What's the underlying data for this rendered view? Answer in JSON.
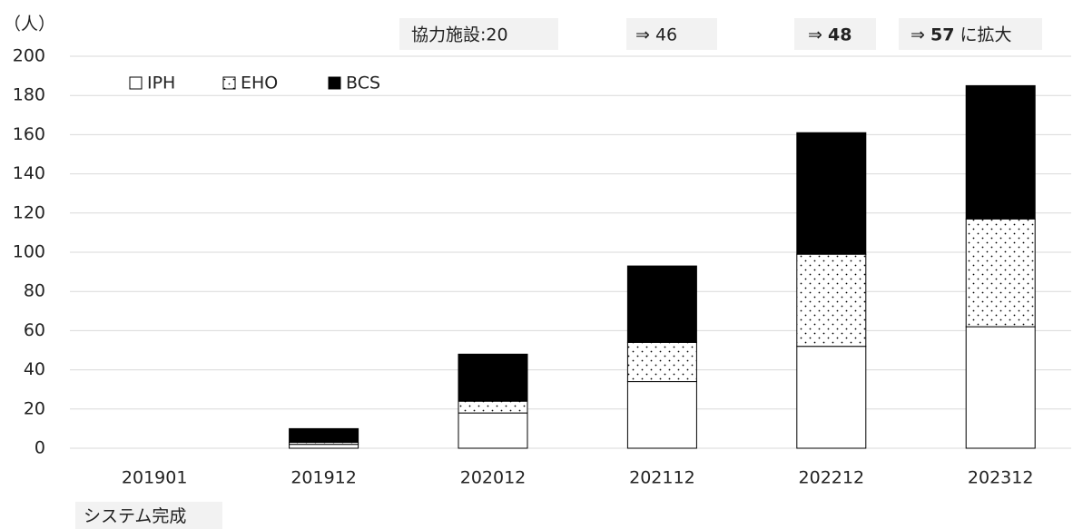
{
  "chart_data": {
    "type": "stacked_bar",
    "y_unit_label": "（人）",
    "categories": [
      "201901",
      "201912",
      "202012",
      "202112",
      "202212",
      "202312"
    ],
    "series": [
      {
        "name": "IPH",
        "color": "#ffffff",
        "values": [
          0,
          2,
          18,
          34,
          52,
          62
        ]
      },
      {
        "name": "EHO",
        "color": "#ffffff",
        "pattern": "dots",
        "values": [
          0,
          1,
          6,
          20,
          47,
          55
        ]
      },
      {
        "name": "BCS",
        "color": "#000000",
        "values": [
          0,
          7,
          24,
          39,
          62,
          68
        ]
      }
    ],
    "ylim": [
      0,
      200
    ],
    "yticks": [
      0,
      20,
      40,
      60,
      80,
      100,
      120,
      140,
      160,
      180,
      200
    ],
    "grid": true,
    "legend": "top-left",
    "annotations": [
      {
        "segments": [
          {
            "text": "協力施設:20",
            "bold": false
          }
        ]
      },
      {
        "segments": [
          {
            "text": "⇒ 46",
            "bold": false
          }
        ]
      },
      {
        "segments": [
          {
            "text": "⇒ ",
            "bold": false
          },
          {
            "text": "48",
            "bold": true
          }
        ]
      },
      {
        "segments": [
          {
            "text": "⇒ ",
            "bold": false
          },
          {
            "text": "57",
            "bold": true
          },
          {
            "text": " に拡大",
            "bold": false
          }
        ]
      },
      {
        "segments": [
          {
            "text": "システム完成",
            "bold": false
          }
        ]
      }
    ]
  }
}
